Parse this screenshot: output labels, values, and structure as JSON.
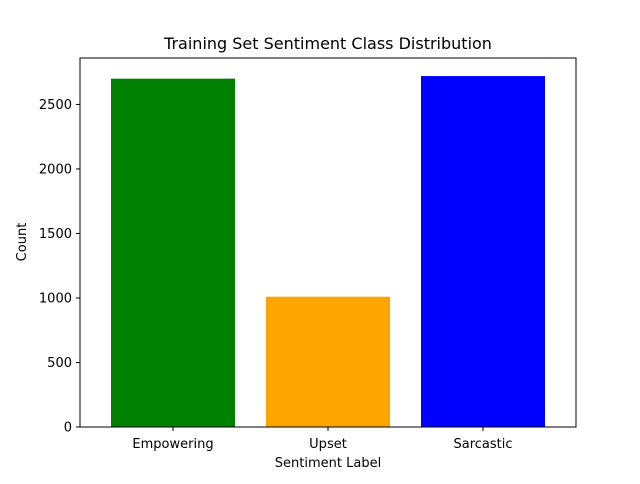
{
  "chart_data": {
    "type": "bar",
    "title": "Training Set Sentiment Class Distribution",
    "xlabel": "Sentiment Label",
    "ylabel": "Count",
    "categories": [
      "Empowering",
      "Upset",
      "Sarcastic"
    ],
    "values": [
      2700,
      1010,
      2720
    ],
    "colors": [
      "#008000",
      "#ffa500",
      "#0000ff"
    ],
    "ylim": [
      0,
      2860
    ],
    "yticks": [
      0,
      500,
      1000,
      1500,
      2000,
      2500
    ],
    "grid": false,
    "legend": "none"
  }
}
